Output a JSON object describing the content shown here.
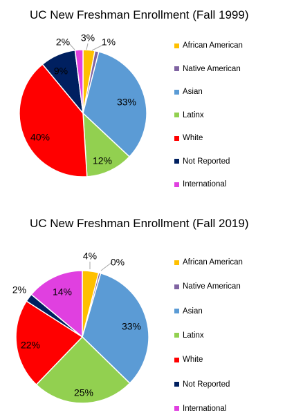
{
  "chart_data": [
    {
      "type": "pie",
      "title": "UC New Freshman Enrollment (Fall 1999)",
      "categories": [
        "African American",
        "Native American",
        "Asian",
        "Latinx",
        "White",
        "Not Reported",
        "International"
      ],
      "values": [
        3,
        1,
        33,
        12,
        40,
        9,
        2
      ],
      "labels": [
        "3%",
        "1%",
        "33%",
        "12%",
        "40%",
        "9%",
        "2%"
      ],
      "colors": [
        "#FFC000",
        "#8064A2",
        "#5B9BD5",
        "#92D050",
        "#FF0000",
        "#002060",
        "#E040E0"
      ],
      "legend_position": "right"
    },
    {
      "type": "pie",
      "title": "UC New Freshman Enrollment (Fall 2019)",
      "categories": [
        "African American",
        "Native American",
        "Asian",
        "Latinx",
        "White",
        "Not Reported",
        "International"
      ],
      "values": [
        4,
        0.5,
        33,
        25,
        22,
        2,
        14
      ],
      "labels": [
        "4%",
        "0%",
        "33%",
        "25%",
        "22%",
        "2%",
        "14%"
      ],
      "colors": [
        "#FFC000",
        "#8064A2",
        "#5B9BD5",
        "#92D050",
        "#FF0000",
        "#002060",
        "#E040E0"
      ],
      "legend_position": "right"
    }
  ]
}
